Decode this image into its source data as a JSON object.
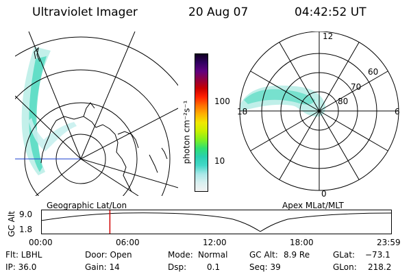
{
  "header": {
    "instrument": "Ultraviolet Imager",
    "date": "20 Aug 07",
    "time": "04:42:52 UT"
  },
  "colorbar": {
    "label": "photon cm⁻²s⁻¹",
    "ticks": [
      "100",
      "10"
    ],
    "colors": [
      "#f2f2f2",
      "#d8f0f0",
      "#a8e8e8",
      "#44d8c8",
      "#2ad0b0",
      "#30e070",
      "#80f020",
      "#c8f000",
      "#f0e800",
      "#ffb000",
      "#ff7000",
      "#ff2000",
      "#c80000",
      "#900040",
      "#600080",
      "#300060",
      "#100020"
    ]
  },
  "left_panel": {
    "label": "Geographic Lat/Lon"
  },
  "right_panel": {
    "label": "Apex MLat/MLT",
    "mlt_labels": [
      "12",
      "18",
      "6",
      "0"
    ],
    "mlat_labels": [
      "60",
      "70",
      "80"
    ]
  },
  "altitude_plot": {
    "axis_label": "GC Alt",
    "y_ticks": [
      "9.0",
      "1.8"
    ],
    "x_ticks": [
      "00:00",
      "06:00",
      "12:00",
      "18:00",
      "23:59"
    ],
    "marker_color": "#d00000",
    "current_time_fraction": 0.196
  },
  "info": {
    "flt": "Flt: LBHL",
    "door": "Door: Open",
    "mode_label": "Mode:",
    "mode_value": "Normal",
    "gc_alt_label": "GC Alt:",
    "gc_alt_value": "8.9 Re",
    "glat_label": "GLat:",
    "glat_value": "−73.1",
    "ip": "IP: 36.0",
    "gain": "Gain: 14",
    "dsp_label": "Dsp:",
    "dsp_value": "0.1",
    "seq": "Seq: 39",
    "glon_label": "GLon:",
    "glon_value": "218.2"
  }
}
